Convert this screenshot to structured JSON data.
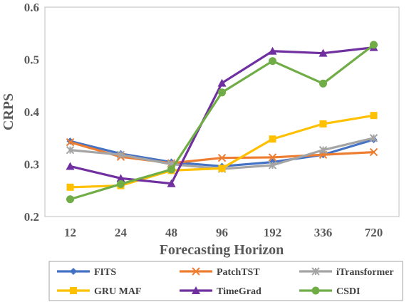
{
  "chart_data": {
    "type": "line",
    "xlabel": "Forecasting Horizon",
    "ylabel": "CRPS",
    "categories": [
      "12",
      "24",
      "48",
      "96",
      "192",
      "336",
      "720"
    ],
    "ylim": [
      0.2,
      0.6
    ],
    "yticks": [
      "0.2",
      "0.3",
      "0.4",
      "0.5",
      "0.6"
    ],
    "grid": false,
    "legend_position": "bottom",
    "series": [
      {
        "name": "FITS",
        "color": "#4472C4",
        "marker": "diamond",
        "values": [
          0.344,
          0.32,
          0.304,
          0.296,
          0.304,
          0.318,
          0.347
        ]
      },
      {
        "name": "PatchTST",
        "color": "#ED7D31",
        "marker": "x",
        "values": [
          0.342,
          0.314,
          0.302,
          0.312,
          0.313,
          0.318,
          0.323
        ]
      },
      {
        "name": "iTransformer",
        "color": "#A5A5A5",
        "marker": "asterisk",
        "values": [
          0.327,
          0.318,
          0.3,
          0.291,
          0.298,
          0.327,
          0.35
        ]
      },
      {
        "name": "GRU MAF",
        "color": "#FFC000",
        "marker": "square",
        "values": [
          0.256,
          0.259,
          0.288,
          0.292,
          0.348,
          0.377,
          0.393
        ]
      },
      {
        "name": "TimeGrad",
        "color": "#7030A0",
        "marker": "triangle",
        "values": [
          0.296,
          0.273,
          0.263,
          0.455,
          0.516,
          0.512,
          0.523
        ]
      },
      {
        "name": "CSDI",
        "color": "#70AD47",
        "marker": "circle",
        "values": [
          0.233,
          0.262,
          0.29,
          0.437,
          0.497,
          0.454,
          0.528
        ]
      }
    ]
  }
}
